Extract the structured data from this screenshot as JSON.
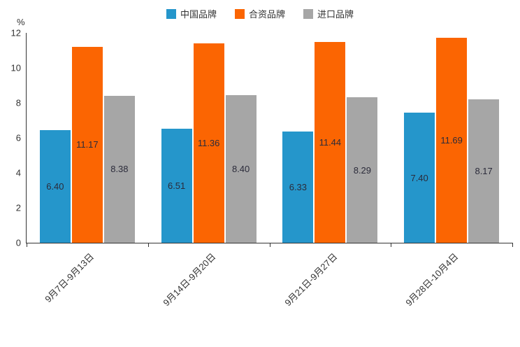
{
  "chart_data": {
    "type": "bar",
    "title": "",
    "xlabel": "",
    "ylabel": "",
    "y_unit": "%",
    "ylim": [
      0,
      12
    ],
    "yticks": [
      0,
      2,
      4,
      6,
      8,
      10,
      12
    ],
    "grid": false,
    "legend_position": "top-center",
    "axis_color": "#333333",
    "value_label_color": "#2b2b3a",
    "categories": [
      "9月7日-9月13日",
      "9月14日-9月20日",
      "9月21日-9月27日",
      "9月28日-10月4日"
    ],
    "series": [
      {
        "name": "中国品牌",
        "color": "#2596cb",
        "values": [
          6.4,
          6.51,
          6.33,
          7.4
        ]
      },
      {
        "name": "合资品牌",
        "color": "#fb6502",
        "values": [
          11.17,
          11.36,
          11.44,
          11.69
        ]
      },
      {
        "name": "进口品牌",
        "color": "#a6a6a6",
        "values": [
          8.38,
          8.4,
          8.29,
          8.17
        ]
      }
    ],
    "value_label_format": "2dp"
  }
}
